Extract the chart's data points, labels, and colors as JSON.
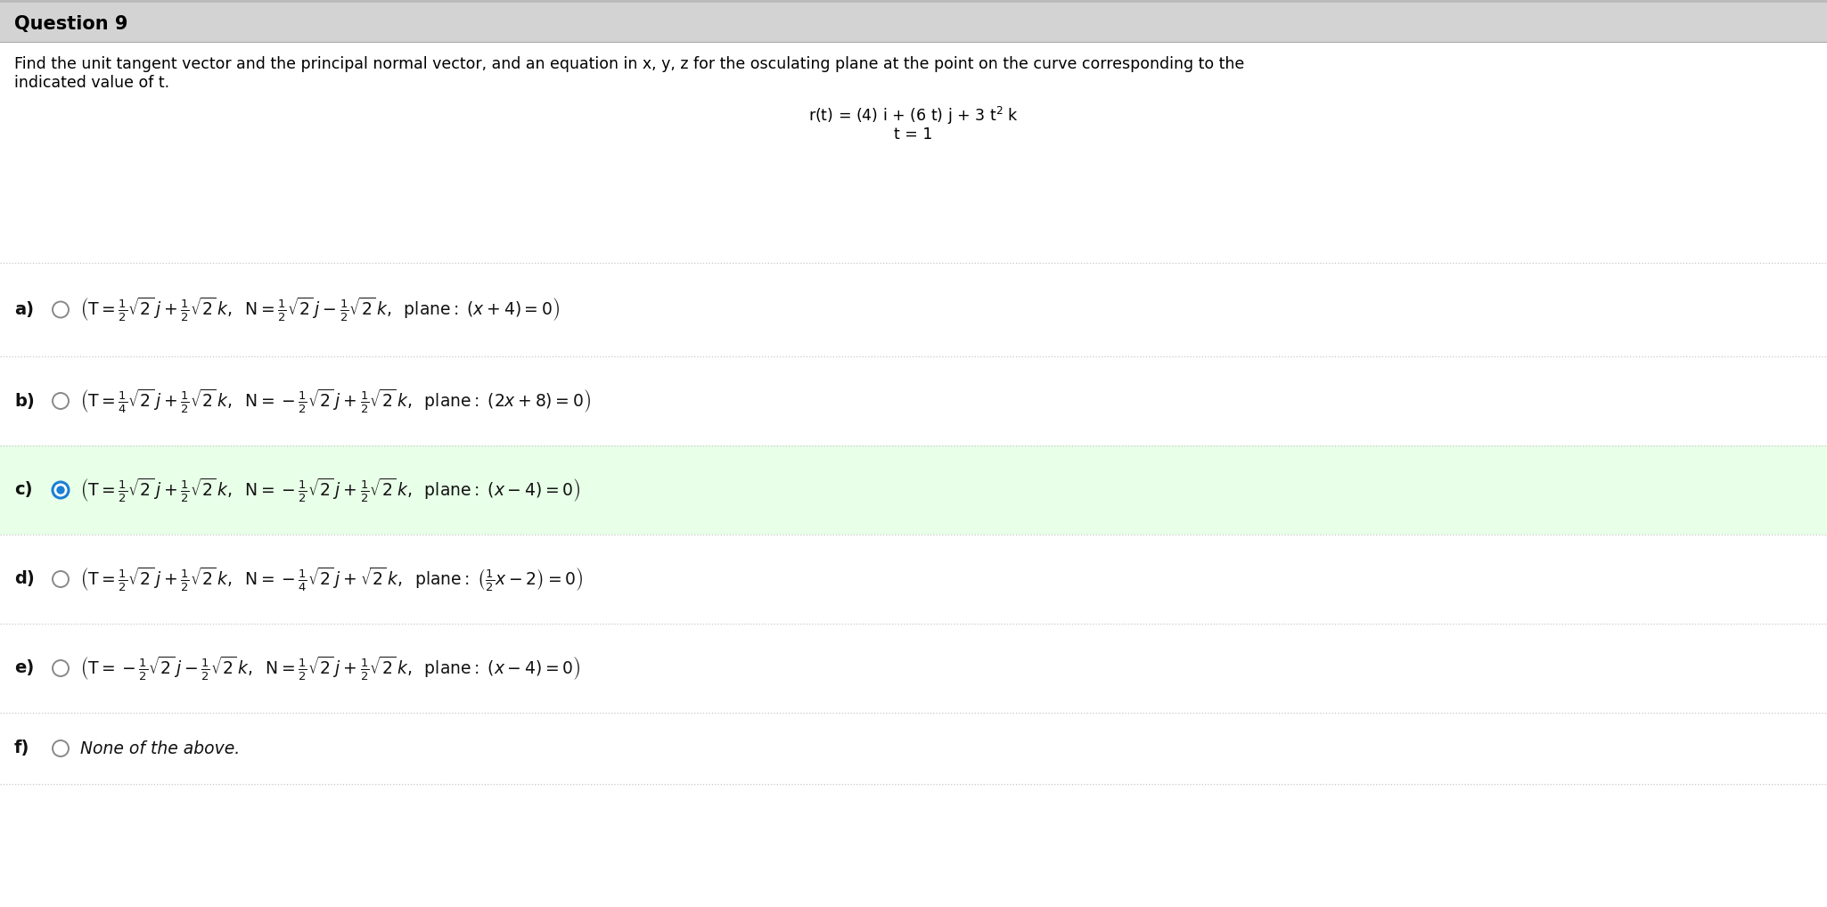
{
  "title": "Question 9",
  "bg_color": "#ffffff",
  "header_bg_color": "#d3d3d3",
  "selected_bg_color": "#e8ffe8",
  "separator_color": "#c8c8c8",
  "font_size_title": 15,
  "font_size_problem": 12.5,
  "font_size_curve": 12.5,
  "font_size_option": 13.5,
  "font_size_f": 13,
  "problem_line1": "Find the unit tangent vector and the principal normal vector, and an equation in x, y, z for the osculating plane at the point on the curve corresponding to the",
  "problem_line2": "indicated value of t.",
  "curve_line1": "r(t) = (4) i + (6 t) j + 3 t$^2$ k",
  "curve_line2": "t = 1",
  "options_math": [
    "$\\left(\\mathrm{T} = \\frac{1}{2}\\sqrt{2}\\, j + \\frac{1}{2}\\sqrt{2}\\, k,\\;\\; \\mathrm{N} = \\frac{1}{2}\\sqrt{2}\\, j - \\frac{1}{2}\\sqrt{2}\\, k,\\;\\; \\mathrm{plane{:}\\;} (x + 4) = 0\\right)$",
    "$\\left(\\mathrm{T} = \\frac{1}{4}\\sqrt{2}\\, j + \\frac{1}{2}\\sqrt{2}\\, k,\\;\\; \\mathrm{N} = -\\frac{1}{2}\\sqrt{2}\\, j + \\frac{1}{2}\\sqrt{2}\\, k,\\;\\; \\mathrm{plane{:}\\;} (2x + 8) = 0\\right)$",
    "$\\left(\\mathrm{T} = \\frac{1}{2}\\sqrt{2}\\, j + \\frac{1}{2}\\sqrt{2}\\, k,\\;\\; \\mathrm{N} = -\\frac{1}{2}\\sqrt{2}\\, j + \\frac{1}{2}\\sqrt{2}\\, k,\\;\\; \\mathrm{plane{:}\\;} (x - 4) = 0\\right)$",
    "$\\left(\\mathrm{T} = \\frac{1}{2}\\sqrt{2}\\, j + \\frac{1}{2}\\sqrt{2}\\, k,\\;\\; \\mathrm{N} = -\\frac{1}{4}\\sqrt{2}\\, j + \\sqrt{2}\\, k,\\;\\; \\mathrm{plane{:}\\;} \\left(\\frac{1}{2}x - 2\\right) = 0\\right)$",
    "$\\left(\\mathrm{T} = -\\frac{1}{2}\\sqrt{2}\\, j - \\frac{1}{2}\\sqrt{2}\\, k,\\;\\; \\mathrm{N} = \\frac{1}{2}\\sqrt{2}\\, j + \\frac{1}{2}\\sqrt{2}\\, k,\\;\\; \\mathrm{plane{:}\\;} (x - 4) = 0\\right)$"
  ],
  "labels": [
    "a)",
    "b)",
    "c)",
    "d)",
    "e)",
    "f)"
  ],
  "selected_index": 2,
  "radio_color_empty": "#888888",
  "radio_color_selected_edge": "#1a7fd4",
  "radio_color_selected_fill": "#1a7fd4"
}
